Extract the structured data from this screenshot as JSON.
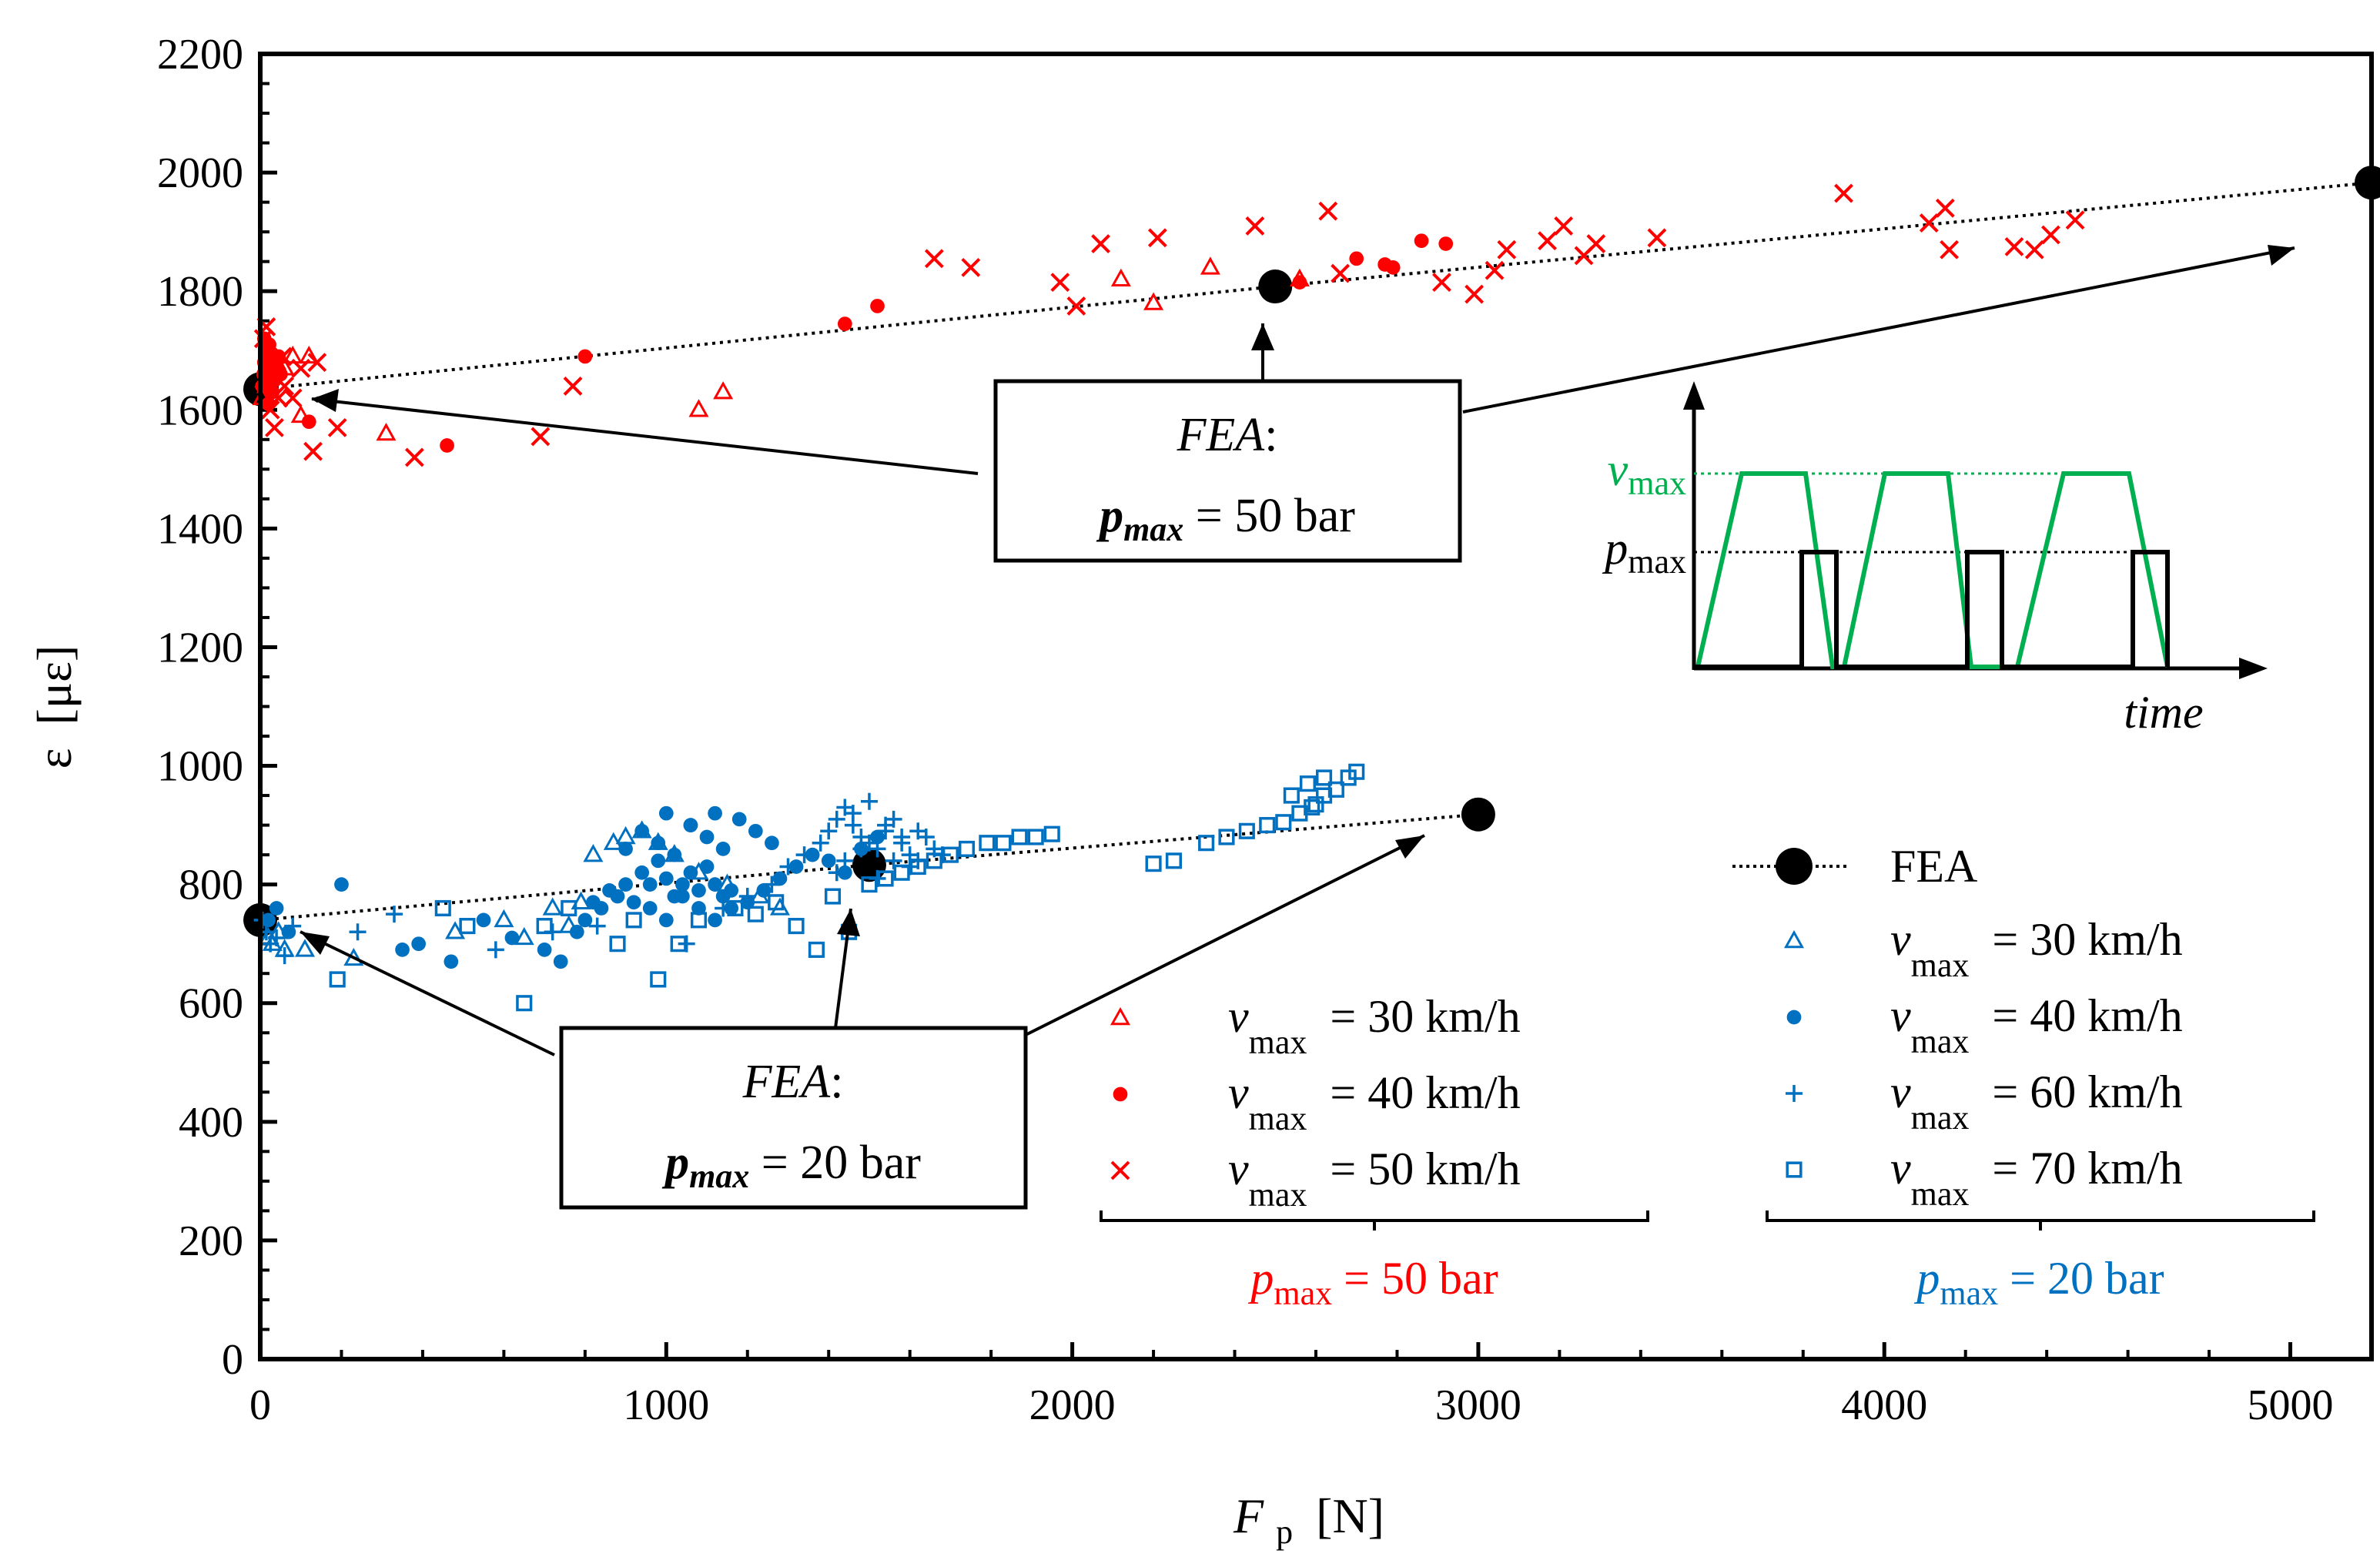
{
  "chart_data": {
    "type": "scatter",
    "xlabel": {
      "main": "F",
      "sub": "p",
      "unit": "[N]"
    },
    "ylabel": {
      "main": "ε",
      "unit": "[με]"
    },
    "xlim": [
      0,
      5200
    ],
    "ylim": [
      0,
      2200
    ],
    "xticks": [
      0,
      1000,
      2000,
      3000,
      4000,
      5000
    ],
    "yticks": [
      0,
      200,
      400,
      600,
      800,
      1000,
      1200,
      1400,
      1600,
      1800,
      2000,
      2200
    ],
    "grid": false,
    "series": [
      {
        "name": "FEA",
        "group": "p_max = 50 bar",
        "marker": "filled-circle-line",
        "color": "#000000",
        "x": [
          0,
          2500,
          5200
        ],
        "y": [
          1635,
          1808,
          1983
        ]
      },
      {
        "name": "FEA",
        "group": "p_max = 20 bar",
        "marker": "filled-circle-line",
        "color": "#000000",
        "x": [
          0,
          1500,
          3000
        ],
        "y": [
          740,
          833,
          918
        ]
      },
      {
        "name": "v_max = 30 km/h",
        "group": "p_max = 50 bar",
        "marker": "triangle",
        "color": "#ff0000",
        "x": [
          5,
          10,
          15,
          20,
          30,
          40,
          60,
          80,
          100,
          120,
          310,
          1080,
          1140,
          2120,
          2200,
          2340,
          2560
        ],
        "y": [
          1620,
          1650,
          1640,
          1700,
          1660,
          1680,
          1670,
          1690,
          1590,
          1690,
          1560,
          1600,
          1630,
          1820,
          1780,
          1840,
          1820
        ]
      },
      {
        "name": "v_max = 40 km/h",
        "group": "p_max = 50 bar",
        "marker": "dot",
        "color": "#ff0000",
        "x": [
          5,
          8,
          10,
          12,
          15,
          18,
          20,
          22,
          25,
          28,
          30,
          35,
          40,
          45,
          50,
          10,
          20,
          30,
          120,
          460,
          800,
          1440,
          1520,
          2560,
          2700,
          2770,
          2790,
          2860,
          2920
        ],
        "y": [
          1640,
          1660,
          1680,
          1700,
          1650,
          1670,
          1690,
          1710,
          1630,
          1660,
          1680,
          1650,
          1670,
          1690,
          1660,
          1720,
          1610,
          1630,
          1580,
          1540,
          1690,
          1745,
          1775,
          1815,
          1855,
          1845,
          1840,
          1885,
          1880
        ]
      },
      {
        "name": "v_max = 50 km/h",
        "group": "p_max = 50 bar",
        "marker": "x",
        "color": "#ff0000",
        "x": [
          8,
          15,
          25,
          35,
          45,
          55,
          60,
          80,
          100,
          130,
          140,
          190,
          380,
          690,
          770,
          1660,
          1750,
          1970,
          2010,
          2070,
          2210,
          2450,
          2630,
          2660,
          2910,
          2990,
          3040,
          3070,
          3170,
          3210,
          3260,
          3290,
          3440,
          3900,
          4110,
          4150,
          4160,
          4320,
          4370,
          4410,
          4470
        ],
        "y": [
          1720,
          1740,
          1600,
          1570,
          1620,
          1690,
          1640,
          1620,
          1670,
          1530,
          1680,
          1570,
          1520,
          1555,
          1640,
          1855,
          1840,
          1815,
          1775,
          1880,
          1890,
          1910,
          1935,
          1830,
          1815,
          1795,
          1835,
          1870,
          1885,
          1910,
          1860,
          1880,
          1890,
          1965,
          1915,
          1940,
          1870,
          1875,
          1870,
          1895,
          1920
        ]
      },
      {
        "name": "v_max = 30 km/h",
        "group": "p_max = 20 bar",
        "marker": "triangle",
        "color": "#0070c0",
        "x": [
          20,
          30,
          45,
          60,
          110,
          230,
          480,
          600,
          650,
          720,
          760,
          790,
          820,
          870,
          900,
          940,
          980,
          1020,
          1080,
          1150,
          1230,
          1280
        ],
        "y": [
          710,
          700,
          720,
          690,
          690,
          675,
          720,
          740,
          710,
          760,
          730,
          770,
          850,
          870,
          880,
          890,
          870,
          850,
          820,
          800,
          780,
          760
        ]
      },
      {
        "name": "v_max = 40 km/h",
        "group": "p_max = 20 bar",
        "marker": "dot",
        "color": "#0070c0",
        "x": [
          20,
          40,
          70,
          200,
          350,
          390,
          470,
          550,
          620,
          700,
          740,
          780,
          800,
          820,
          840,
          860,
          880,
          900,
          920,
          940,
          960,
          980,
          1000,
          1020,
          1040,
          1060,
          1080,
          1100,
          1120,
          1140,
          1160,
          1200,
          1240,
          1280,
          1320,
          1360,
          1400,
          1440,
          1480,
          1520,
          900,
          940,
          980,
          1020,
          1060,
          1100,
          1140,
          1180,
          1220,
          1260,
          960,
          1000,
          1040,
          1080,
          1120,
          1160,
          1000,
          1060,
          1120
        ],
        "y": [
          740,
          760,
          720,
          800,
          690,
          700,
          670,
          740,
          710,
          690,
          670,
          720,
          740,
          770,
          760,
          790,
          780,
          800,
          770,
          820,
          800,
          840,
          810,
          780,
          800,
          820,
          790,
          830,
          800,
          780,
          760,
          770,
          790,
          810,
          830,
          850,
          840,
          820,
          860,
          880,
          860,
          890,
          870,
          850,
          900,
          880,
          860,
          910,
          890,
          870,
          760,
          740,
          780,
          760,
          740,
          790,
          920,
          900,
          920
        ]
      },
      {
        "name": "v_max = 60 km/h",
        "group": "p_max = 20 bar",
        "marker": "plus",
        "color": "#0070c0",
        "x": [
          5,
          15,
          25,
          40,
          60,
          80,
          240,
          330,
          580,
          720,
          830,
          1050,
          1140,
          1200,
          1260,
          1300,
          1340,
          1380,
          1400,
          1420,
          1440,
          1460,
          1480,
          1500,
          1520,
          1540,
          1560,
          1580,
          1600,
          1620,
          1640,
          1660,
          1680,
          1460,
          1500,
          1540,
          1580,
          1620,
          1420,
          1440,
          1480,
          1520,
          1560,
          1600
        ],
        "y": [
          740,
          720,
          700,
          710,
          680,
          730,
          720,
          750,
          690,
          720,
          730,
          700,
          760,
          780,
          800,
          830,
          850,
          870,
          890,
          910,
          930,
          900,
          880,
          870,
          860,
          890,
          910,
          870,
          850,
          840,
          880,
          860,
          850,
          920,
          940,
          900,
          880,
          890,
          820,
          840,
          860,
          810,
          840,
          830
        ]
      },
      {
        "name": "v_max = 70 km/h",
        "group": "p_max = 20 bar",
        "marker": "square",
        "color": "#0070c0",
        "x": [
          190,
          450,
          510,
          650,
          700,
          760,
          880,
          920,
          980,
          1030,
          1080,
          1170,
          1220,
          1270,
          1320,
          1370,
          1410,
          1450,
          1500,
          1540,
          1580,
          1620,
          1660,
          1700,
          1740,
          1790,
          1830,
          1870,
          1910,
          1950,
          2200,
          2250,
          2330,
          2380,
          2430,
          2480,
          2520,
          2560,
          2590,
          2620,
          2650,
          2680,
          2700,
          2540,
          2580,
          2620,
          2600
        ],
        "y": [
          640,
          760,
          730,
          600,
          730,
          760,
          700,
          740,
          640,
          700,
          740,
          760,
          750,
          770,
          730,
          690,
          780,
          720,
          800,
          810,
          820,
          830,
          840,
          850,
          860,
          870,
          870,
          880,
          880,
          885,
          835,
          840,
          870,
          880,
          890,
          900,
          905,
          920,
          930,
          950,
          960,
          980,
          990,
          950,
          970,
          980,
          935
        ]
      }
    ],
    "annotations": [
      {
        "line1": "FEA",
        "line2_var": "p",
        "line2_sub": "max",
        "line2_rest": " = 50 bar",
        "unit_style": "upright"
      },
      {
        "line1": "FEA",
        "line2_var": "p",
        "line2_sub": "max",
        "line2_rest": " = 20 bar",
        "unit_style": "upright"
      }
    ],
    "legend": {
      "placement": "bottom-right",
      "fea_label": "FEA",
      "red_entries": [
        "= 30 km/h",
        "= 40 km/h",
        "= 50 km/h"
      ],
      "blue_entries": [
        "= 30 km/h",
        "= 40 km/h",
        "= 60 km/h",
        "= 70 km/h"
      ],
      "var_main": "v",
      "var_sub": "max",
      "red_group_label": {
        "var": "p",
        "sub": "max",
        "rest": " = 50 bar"
      },
      "blue_group_label": {
        "var": "p",
        "sub": "max",
        "rest": " = 20 bar"
      }
    },
    "inset": {
      "type": "line",
      "description": "schematic",
      "xlabel": "time",
      "labels": [
        {
          "var": "v",
          "sub": "max",
          "color": "#00b050"
        },
        {
          "var": "p",
          "sub": "max",
          "color": "#000000"
        }
      ],
      "v_color": "#00b050",
      "p_color": "#000000"
    },
    "colors": {
      "red": "#ff0000",
      "blue": "#0070c0",
      "green": "#00b050",
      "black": "#000000"
    }
  }
}
